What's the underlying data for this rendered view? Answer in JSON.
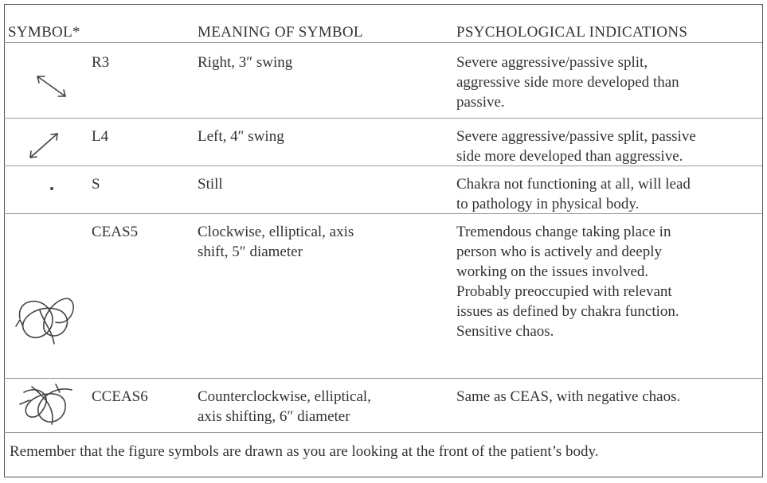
{
  "table": {
    "header": [
      "SYMBOL*",
      "MEANING OF SYMBOL",
      "PSYCHOLOGICAL INDICATIONS"
    ],
    "rows": [
      {
        "code": "R3",
        "meaning": [
          "Right, 3″ swing"
        ],
        "indications": [
          "Severe aggressive/passive split,",
          "aggressive side more developed than",
          "passive."
        ]
      },
      {
        "code": "L4",
        "meaning": [
          "Left, 4″ swing"
        ],
        "indications": [
          "Severe aggressive/passive split, passive",
          "side more developed than aggressive."
        ]
      },
      {
        "code": "S",
        "meaning": [
          "Still"
        ],
        "indications": [
          "Chakra not functioning at all, will lead",
          "to pathology in physical body."
        ]
      },
      {
        "code": "CEAS5",
        "meaning": [
          "Clockwise, elliptical, axis",
          "shift, 5″ diameter"
        ],
        "indications": [
          "Tremendous change taking place in",
          "person who is actively and deeply",
          "working on the issues involved.",
          "Probably preoccupied with relevant",
          "issues as defined by chakra function.",
          "Sensitive chaos."
        ]
      },
      {
        "code": "CCEAS6",
        "meaning": [
          "Counterclockwise, elliptical,",
          "axis shifting, 6″ diameter"
        ],
        "indications": [
          "Same as CEAS, with negative chaos."
        ]
      }
    ]
  },
  "footnote": "Remember that the figure symbols are drawn as you are looking at the front of the patient’s body."
}
